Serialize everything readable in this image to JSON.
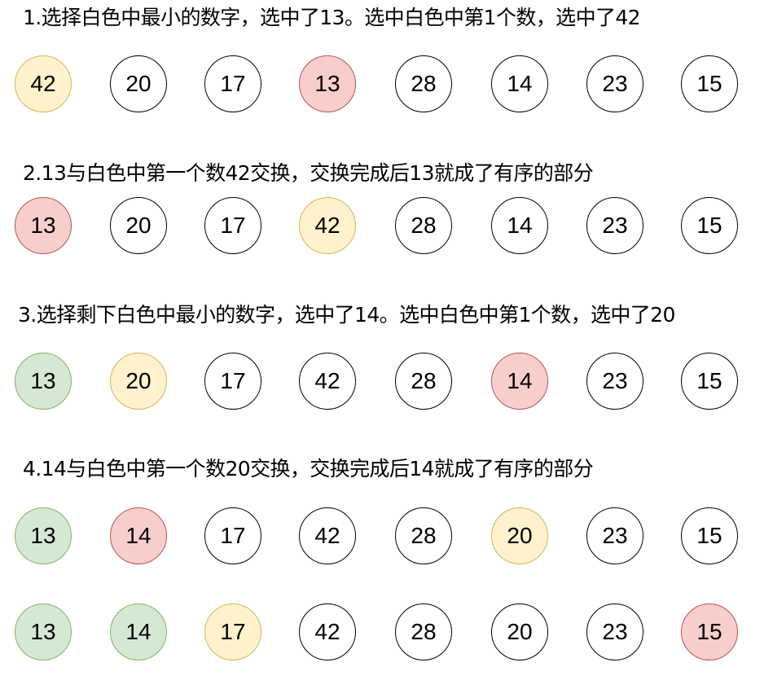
{
  "steps": [
    {
      "caption": "1.选择白色中最小的数字，选中了13。选中白色中第1个数，选中了42"
    },
    {
      "caption": "2.13与白色中第一个数42交换，交换完成后13就成了有序的部分"
    },
    {
      "caption": "3.选择剩下白色中最小的数字，选中了14。选中白色中第1个数，选中了20"
    },
    {
      "caption": "4.14与白色中第一个数20交换，交换完成后14就成了有序的部分"
    }
  ],
  "rows": [
    {
      "cells": [
        {
          "value": "42",
          "color": "yellow"
        },
        {
          "value": "20",
          "color": "white"
        },
        {
          "value": "17",
          "color": "white"
        },
        {
          "value": "13",
          "color": "red"
        },
        {
          "value": "28",
          "color": "white"
        },
        {
          "value": "14",
          "color": "white"
        },
        {
          "value": "23",
          "color": "white"
        },
        {
          "value": "15",
          "color": "white"
        }
      ]
    },
    {
      "cells": [
        {
          "value": "13",
          "color": "red"
        },
        {
          "value": "20",
          "color": "white"
        },
        {
          "value": "17",
          "color": "white"
        },
        {
          "value": "42",
          "color": "yellow"
        },
        {
          "value": "28",
          "color": "white"
        },
        {
          "value": "14",
          "color": "white"
        },
        {
          "value": "23",
          "color": "white"
        },
        {
          "value": "15",
          "color": "white"
        }
      ]
    },
    {
      "cells": [
        {
          "value": "13",
          "color": "green"
        },
        {
          "value": "20",
          "color": "yellow"
        },
        {
          "value": "17",
          "color": "white"
        },
        {
          "value": "42",
          "color": "white"
        },
        {
          "value": "28",
          "color": "white"
        },
        {
          "value": "14",
          "color": "red"
        },
        {
          "value": "23",
          "color": "white"
        },
        {
          "value": "15",
          "color": "white"
        }
      ]
    },
    {
      "cells": [
        {
          "value": "13",
          "color": "green"
        },
        {
          "value": "14",
          "color": "red"
        },
        {
          "value": "17",
          "color": "white"
        },
        {
          "value": "42",
          "color": "white"
        },
        {
          "value": "28",
          "color": "white"
        },
        {
          "value": "20",
          "color": "yellow"
        },
        {
          "value": "23",
          "color": "white"
        },
        {
          "value": "15",
          "color": "white"
        }
      ]
    },
    {
      "cells": [
        {
          "value": "13",
          "color": "green"
        },
        {
          "value": "14",
          "color": "green"
        },
        {
          "value": "17",
          "color": "yellow"
        },
        {
          "value": "42",
          "color": "white"
        },
        {
          "value": "28",
          "color": "white"
        },
        {
          "value": "20",
          "color": "white"
        },
        {
          "value": "23",
          "color": "white"
        },
        {
          "value": "15",
          "color": "red"
        }
      ]
    }
  ]
}
